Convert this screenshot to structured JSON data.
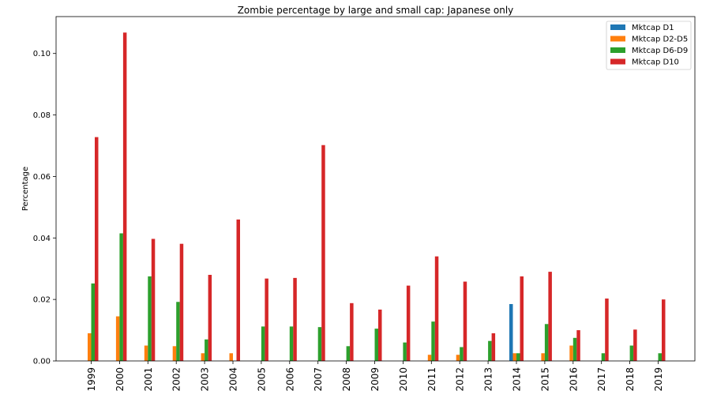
{
  "chart_data": {
    "type": "bar",
    "title": "Zombie percentage by large and small cap: Japanese only",
    "xlabel": "",
    "ylabel": "Percentage",
    "ylim": [
      0,
      0.112
    ],
    "yticks": [
      0.0,
      0.02,
      0.04,
      0.06,
      0.08,
      0.1
    ],
    "ytick_labels": [
      "0.00",
      "0.02",
      "0.04",
      "0.06",
      "0.08",
      "0.10"
    ],
    "grid": false,
    "legend_position": "top-right",
    "categories": [
      "1999",
      "2000",
      "2001",
      "2002",
      "2003",
      "2004",
      "2005",
      "2006",
      "2007",
      "2008",
      "2009",
      "2010",
      "2011",
      "2012",
      "2013",
      "2014",
      "2015",
      "2016",
      "2017",
      "2018",
      "2019"
    ],
    "series": [
      {
        "name": "Mktcap D1",
        "color": "#1f77b4",
        "values": [
          0,
          0,
          0,
          0,
          0,
          0,
          0,
          0,
          0,
          0,
          0,
          0,
          0,
          0,
          0,
          0.0185,
          0,
          0,
          0,
          0,
          0
        ]
      },
      {
        "name": "Mktcap D2-D5",
        "color": "#ff7f0e",
        "values": [
          0.009,
          0.0145,
          0.005,
          0.0048,
          0.0025,
          0.0025,
          0,
          0,
          0,
          0,
          0,
          0,
          0.002,
          0.002,
          0,
          0.0025,
          0.0025,
          0.005,
          0,
          0,
          0
        ]
      },
      {
        "name": "Mktcap D6-D9",
        "color": "#2ca02c",
        "values": [
          0.0252,
          0.0415,
          0.0275,
          0.0192,
          0.007,
          0,
          0.0112,
          0.0112,
          0.011,
          0.0048,
          0.0105,
          0.006,
          0.0128,
          0.0045,
          0.0065,
          0.0025,
          0.012,
          0.0075,
          0.0025,
          0.005,
          0.0025
        ]
      },
      {
        "name": "Mktcap D10",
        "color": "#d62728",
        "values": [
          0.0728,
          0.1068,
          0.0397,
          0.0381,
          0.028,
          0.046,
          0.0268,
          0.027,
          0.0702,
          0.0188,
          0.0167,
          0.0245,
          0.034,
          0.0258,
          0.009,
          0.0275,
          0.029,
          0.01,
          0.0203,
          0.0102,
          0.02
        ]
      }
    ]
  }
}
